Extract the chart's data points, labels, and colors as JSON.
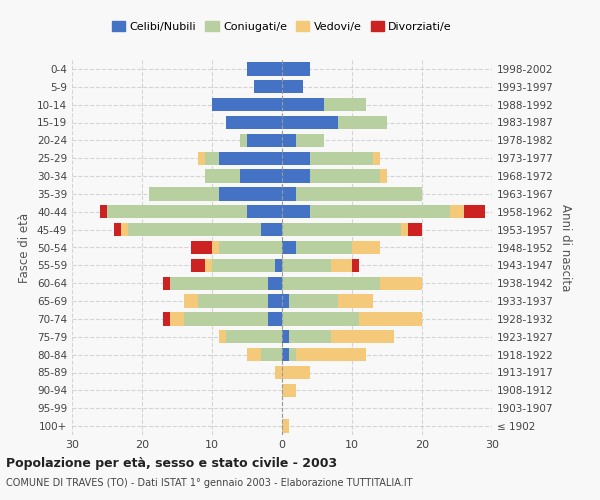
{
  "age_groups": [
    "100+",
    "95-99",
    "90-94",
    "85-89",
    "80-84",
    "75-79",
    "70-74",
    "65-69",
    "60-64",
    "55-59",
    "50-54",
    "45-49",
    "40-44",
    "35-39",
    "30-34",
    "25-29",
    "20-24",
    "15-19",
    "10-14",
    "5-9",
    "0-4"
  ],
  "birth_years": [
    "≤ 1902",
    "1903-1907",
    "1908-1912",
    "1913-1917",
    "1918-1922",
    "1923-1927",
    "1928-1932",
    "1933-1937",
    "1938-1942",
    "1943-1947",
    "1948-1952",
    "1953-1957",
    "1958-1962",
    "1963-1967",
    "1968-1972",
    "1973-1977",
    "1978-1982",
    "1983-1987",
    "1988-1992",
    "1993-1997",
    "1998-2002"
  ],
  "male": {
    "celibi": [
      0,
      0,
      0,
      0,
      0,
      0,
      2,
      2,
      2,
      1,
      0,
      3,
      5,
      9,
      6,
      9,
      5,
      8,
      10,
      4,
      5
    ],
    "coniugati": [
      0,
      0,
      0,
      0,
      3,
      8,
      12,
      10,
      14,
      9,
      9,
      19,
      20,
      10,
      5,
      2,
      1,
      0,
      0,
      0,
      0
    ],
    "vedovi": [
      0,
      0,
      0,
      1,
      2,
      1,
      2,
      2,
      0,
      1,
      1,
      1,
      0,
      0,
      0,
      1,
      0,
      0,
      0,
      0,
      0
    ],
    "divorziati": [
      0,
      0,
      0,
      0,
      0,
      0,
      1,
      0,
      1,
      2,
      3,
      1,
      1,
      0,
      0,
      0,
      0,
      0,
      0,
      0,
      0
    ]
  },
  "female": {
    "nubili": [
      0,
      0,
      0,
      0,
      1,
      1,
      0,
      1,
      0,
      0,
      2,
      0,
      4,
      2,
      4,
      4,
      2,
      8,
      6,
      3,
      4
    ],
    "coniugate": [
      0,
      0,
      0,
      0,
      1,
      6,
      11,
      7,
      14,
      7,
      8,
      17,
      20,
      18,
      10,
      9,
      4,
      7,
      6,
      0,
      0
    ],
    "vedove": [
      1,
      0,
      2,
      4,
      10,
      9,
      9,
      5,
      6,
      3,
      4,
      1,
      2,
      0,
      1,
      1,
      0,
      0,
      0,
      0,
      0
    ],
    "divorziate": [
      0,
      0,
      0,
      0,
      0,
      0,
      0,
      0,
      0,
      1,
      0,
      2,
      3,
      0,
      0,
      0,
      0,
      0,
      0,
      0,
      0
    ]
  },
  "color_celibi": "#4472c4",
  "color_coniugati": "#b8cfa0",
  "color_vedovi": "#f5c97a",
  "color_divorziati": "#cc2222",
  "xlim": 30,
  "title": "Popolazione per età, sesso e stato civile - 2003",
  "subtitle": "COMUNE DI TRAVES (TO) - Dati ISTAT 1° gennaio 2003 - Elaborazione TUTTITALIA.IT",
  "ylabel_left": "Fasce di età",
  "ylabel_right": "Anni di nascita",
  "legend_labels": [
    "Celibi/Nubili",
    "Coniugati/e",
    "Vedovi/e",
    "Divorziati/e"
  ],
  "bg_color": "#f8f8f8",
  "grid_color": "#cccccc"
}
